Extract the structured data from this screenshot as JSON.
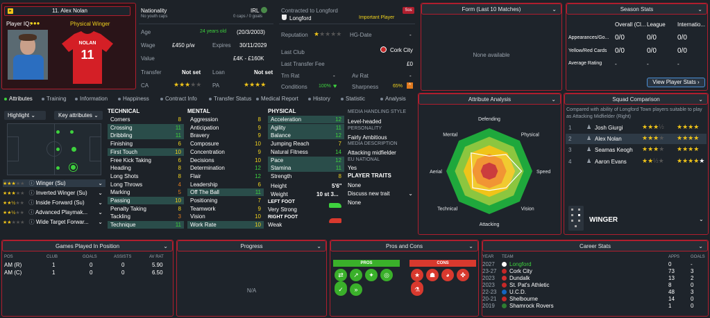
{
  "player": {
    "number_name": "11. Alex Nolan",
    "iq_label": "Player IQ:",
    "role": "Physical Winger",
    "shirt_name": "NOLAN",
    "shirt_number": "11"
  },
  "nationality": {
    "label": "Nationality",
    "sub": "No youth caps",
    "country": "IRL",
    "caps": "0 caps / 0 goals"
  },
  "contract": {
    "label": "Contracted to Longford",
    "club": "Longford",
    "status": "Important Player",
    "badge": "Sos"
  },
  "info": [
    {
      "k": "Age",
      "v": "24 years old",
      "v2": "(20/3/2003)"
    },
    {
      "k": "Wage",
      "v": "£450 p/w",
      "k2": "Expires",
      "v2": "30/11/2029"
    },
    {
      "k": "Value",
      "v": "£4K - £160K"
    },
    {
      "k": "Transfer",
      "v": "Not set",
      "k2": "Loan",
      "v2": "Not set"
    },
    {
      "k": "CA",
      "k2": "PA"
    }
  ],
  "reputation": {
    "label": "Reputation",
    "hg": "HG-Date",
    "hg_val": "-",
    "last_club_label": "Last Club",
    "last_club": "Cork City",
    "fee_label": "Last Transfer Fee",
    "fee": "£0",
    "trn_label": "Trn Rat",
    "trn": "-",
    "av_label": "Av Rat",
    "av": "-",
    "cond_label": "Conditions",
    "cond": "100%",
    "sharp_label": "Sharpness",
    "sharp": "65%"
  },
  "form": {
    "title": "Form (Last 10 Matches)",
    "empty": "None available"
  },
  "season": {
    "title": "Season Stats",
    "cols": [
      "Overall (Cl...",
      "League",
      "Internatio..."
    ],
    "rows": [
      {
        "label": "Appearances/Go...",
        "vals": [
          "0/0",
          "0/0",
          "0/0"
        ]
      },
      {
        "label": "Yellow/Red Cards",
        "vals": [
          "0/0",
          "0/0",
          "0/0"
        ]
      },
      {
        "label": "Average Rating",
        "vals": [
          "-",
          "-",
          "-"
        ]
      }
    ],
    "button": "View Player Stats"
  },
  "tabs": [
    "Attributes",
    "Training",
    "Information",
    "Happiness",
    "Contract Info",
    "Transfer Status",
    "Medical Report",
    "History",
    "Statistic",
    "Analysis"
  ],
  "highlight": {
    "label": "Highlight",
    "key": "Key attributes"
  },
  "roles": [
    {
      "name": "Winger (Su)"
    },
    {
      "name": "Inverted Winger (Su)"
    },
    {
      "name": "Inside Forward (Su)"
    },
    {
      "name": "Advanced Playmak..."
    },
    {
      "name": "Wide Target Forwar..."
    }
  ],
  "technical": {
    "title": "TECHNICAL",
    "items": [
      {
        "n": "Corners",
        "v": "8"
      },
      {
        "n": "Crossing",
        "v": "11"
      },
      {
        "n": "Dribbling",
        "v": "11"
      },
      {
        "n": "Finishing",
        "v": "6"
      },
      {
        "n": "First Touch",
        "v": "10"
      },
      {
        "n": "Free Kick Taking",
        "v": "6"
      },
      {
        "n": "Heading",
        "v": "8"
      },
      {
        "n": "Long Shots",
        "v": "8"
      },
      {
        "n": "Long Throws",
        "v": "4"
      },
      {
        "n": "Marking",
        "v": "5"
      },
      {
        "n": "Passing",
        "v": "10"
      },
      {
        "n": "Penalty Taking",
        "v": "8"
      },
      {
        "n": "Tackling",
        "v": "3"
      },
      {
        "n": "Technique",
        "v": "11"
      }
    ]
  },
  "mental": {
    "title": "MENTAL",
    "items": [
      {
        "n": "Aggression",
        "v": "8"
      },
      {
        "n": "Anticipation",
        "v": "9"
      },
      {
        "n": "Bravery",
        "v": "9"
      },
      {
        "n": "Composure",
        "v": "10"
      },
      {
        "n": "Concentration",
        "v": "9"
      },
      {
        "n": "Decisions",
        "v": "10"
      },
      {
        "n": "Determination",
        "v": "12"
      },
      {
        "n": "Flair",
        "v": "12"
      },
      {
        "n": "Leadership",
        "v": "6"
      },
      {
        "n": "Off The Ball",
        "v": "11"
      },
      {
        "n": "Positioning",
        "v": "7"
      },
      {
        "n": "Teamwork",
        "v": "9"
      },
      {
        "n": "Vision",
        "v": "10"
      },
      {
        "n": "Work Rate",
        "v": "10"
      }
    ]
  },
  "physical": {
    "title": "PHYSICAL",
    "items": [
      {
        "n": "Acceleration",
        "v": "12"
      },
      {
        "n": "Agility",
        "v": "11"
      },
      {
        "n": "Balance",
        "v": "12"
      },
      {
        "n": "Jumping Reach",
        "v": "7"
      },
      {
        "n": "Natural Fitness",
        "v": "14"
      },
      {
        "n": "Pace",
        "v": "12"
      },
      {
        "n": "Stamina",
        "v": "11"
      },
      {
        "n": "Strength",
        "v": "8"
      }
    ],
    "height_label": "Height",
    "height": "5'6\"",
    "weight_label": "Weight",
    "weight": "10 st 3...",
    "lf_label": "LEFT FOOT",
    "lf": "Very Strong",
    "rf_label": "RIGHT FOOT",
    "rf": "Weak"
  },
  "media": {
    "style_label": "MEDIA HANDLING STYLE",
    "style": "Level-headed",
    "pers_label": "PERSONALITY",
    "pers": "Fairly Ambitious",
    "desc_label": "MEDIA DESCRIPTION",
    "desc": "Attacking midfielder",
    "eu_label": "EU NATIONAL",
    "eu": "Yes",
    "traits_label": "PLAYER TRAITS",
    "traits": "None",
    "discuss": "Discuss new trait",
    "discuss_val": "None"
  },
  "analysis": {
    "title": "Attribute Analysis",
    "axes": [
      "Defending",
      "Physical",
      "Speed",
      "Vision",
      "Attacking",
      "Technical",
      "Aerial",
      "Mental"
    ],
    "values": [
      0.35,
      0.55,
      0.75,
      0.55,
      0.45,
      0.55,
      0.4,
      0.6
    ]
  },
  "squad": {
    "title": "Squad Comparison",
    "desc": "Compared with ability of Longford Town players suitable to play as Attacking Midfielder (Right)",
    "players": [
      {
        "rank": "1",
        "name": "Josh Giurgi"
      },
      {
        "rank": "2",
        "name": "Alex Nolan"
      },
      {
        "rank": "3",
        "name": "Seamas Keogh"
      },
      {
        "rank": "4",
        "name": "Aaron Evans"
      }
    ],
    "role": "WINGER"
  },
  "games": {
    "title": "Games Played In Position",
    "cols": [
      "POS",
      "CLUB",
      "GOALS",
      "ASSISTS",
      "AV RAT"
    ],
    "rows": [
      [
        "AM (R)",
        "1",
        "0",
        "0",
        "5.90"
      ],
      [
        "AM (C)",
        "1",
        "0",
        "0",
        "6.50"
      ]
    ]
  },
  "progress": {
    "title": "Progress",
    "empty": "N/A"
  },
  "proscons": {
    "title": "Pros and Cons",
    "pros": "PROS",
    "cons": "CONS"
  },
  "career": {
    "title": "Career Stats",
    "cols": [
      "YEAR",
      "TEAM",
      "APPS",
      "GOALS"
    ],
    "rows": [
      [
        "2027",
        "Longford",
        "0",
        "-"
      ],
      [
        "23-27",
        "Cork City",
        "73",
        "3"
      ],
      [
        "2023",
        "Dundalk",
        "13",
        "2"
      ],
      [
        "2023",
        "St. Pat's Athletic",
        "8",
        "0"
      ],
      [
        "22-23",
        "U.C.D.",
        "48",
        "3"
      ],
      [
        "20-21",
        "Shelbourne",
        "14",
        "0"
      ],
      [
        "2019",
        "Shamrock Rovers",
        "1",
        "0"
      ]
    ]
  },
  "colors": {
    "accent": "#b01e2e",
    "green": "#3ed23e"
  }
}
